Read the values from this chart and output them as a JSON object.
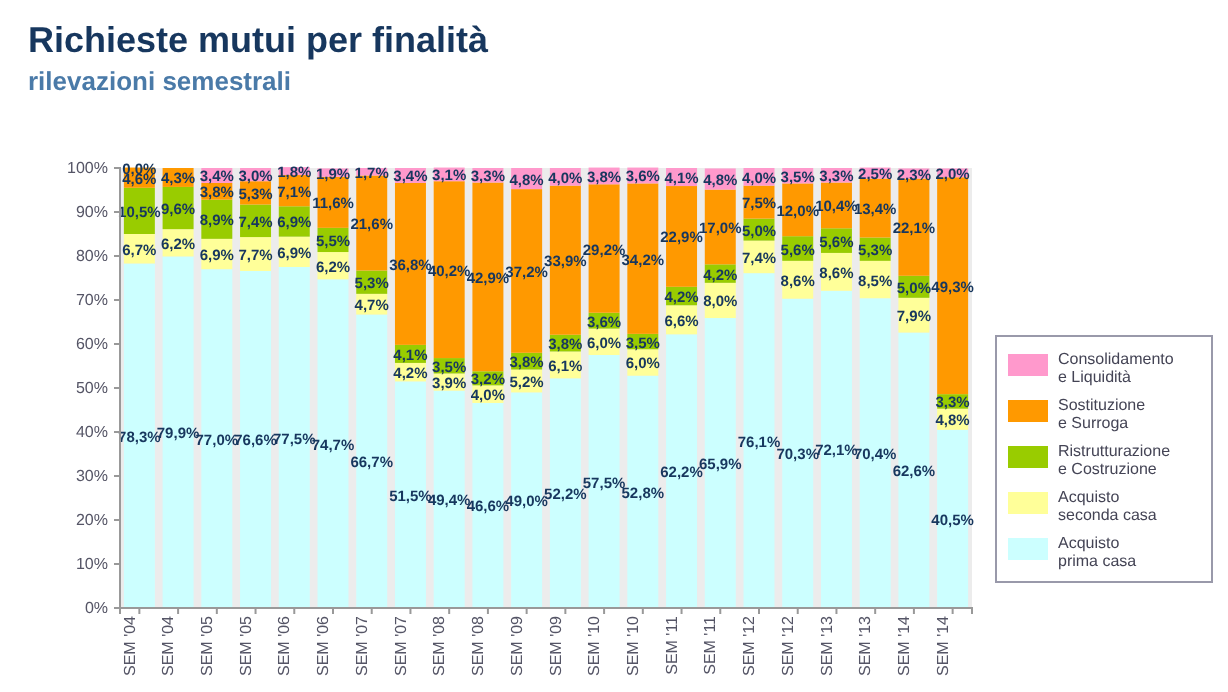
{
  "chart_data": {
    "type": "bar",
    "stacked": true,
    "title": "Richieste mutui per finalità",
    "subtitle": "rilevazioni semestrali",
    "categories": [
      "SEM '04",
      "SEM '04",
      "SEM '05",
      "SEM '05",
      "SEM '06",
      "SEM '06",
      "SEM '07",
      "SEM '07",
      "SEM '08",
      "SEM '08",
      "SEM '09",
      "SEM '09",
      "SEM '10",
      "SEM '10",
      "SEM '11",
      "SEM '11",
      "SEM '12",
      "SEM '12",
      "SEM '13",
      "SEM '13",
      "SEM '14",
      "SEM '14"
    ],
    "series": [
      {
        "name": "Acquisto prima casa",
        "color": "#ccffff",
        "values": [
          78.3,
          79.9,
          77.0,
          76.6,
          77.5,
          74.7,
          66.7,
          51.5,
          49.4,
          46.6,
          49.0,
          52.2,
          57.5,
          52.8,
          62.2,
          65.9,
          76.1,
          70.3,
          72.1,
          70.4,
          62.6,
          40.5
        ],
        "value_labels": [
          "78,3%",
          "79,9%",
          "77,0%",
          "76,6%",
          "77,5%",
          "74,7%",
          "66,7%",
          "51,5%",
          "49,4%",
          "46,6%",
          "49,0%",
          "52,2%",
          "57,5%",
          "52,8%",
          "62,2%",
          "65,9%",
          "76,1%",
          "70,3%",
          "72,1%",
          "70,4%",
          "62,6%",
          "40,5%"
        ]
      },
      {
        "name": "Acquisto seconda casa",
        "color": "#ffff99",
        "values": [
          6.7,
          6.2,
          6.9,
          7.7,
          6.9,
          6.2,
          4.7,
          4.2,
          3.9,
          4.0,
          5.2,
          6.1,
          6.0,
          6.0,
          6.6,
          8.0,
          7.4,
          8.6,
          8.6,
          8.5,
          7.9,
          4.8
        ],
        "value_labels": [
          "6,7%",
          "6,2%",
          "6,9%",
          "7,7%",
          "6,9%",
          "6,2%",
          "4,7%",
          "4,2%",
          "3,9%",
          "4,0%",
          "5,2%",
          "6,1%",
          "6,0%",
          "6,0%",
          "6,6%",
          "8,0%",
          "7,4%",
          "8,6%",
          "8,6%",
          "8,5%",
          "7,9%",
          "4,8%"
        ]
      },
      {
        "name": "Ristrutturazione e Costruzione",
        "color": "#99cc00",
        "values": [
          10.5,
          9.6,
          8.9,
          7.4,
          6.9,
          5.5,
          5.3,
          4.1,
          3.5,
          3.2,
          3.8,
          3.8,
          3.6,
          3.5,
          4.2,
          4.2,
          5.0,
          5.6,
          5.6,
          5.3,
          5.0,
          3.3
        ],
        "value_labels": [
          "10,5%",
          "9,6%",
          "8,9%",
          "7,4%",
          "6,9%",
          "5,5%",
          "5,3%",
          "4,1%",
          "3,5%",
          "3,2%",
          "3,8%",
          "3,8%",
          "3,6%",
          "3,5%",
          "4,2%",
          "4,2%",
          "5,0%",
          "5,6%",
          "5,6%",
          "5,3%",
          "5,0%",
          "3,3%"
        ]
      },
      {
        "name": "Sostituzione e Surroga",
        "color": "#ff9900",
        "values": [
          4.6,
          4.3,
          3.8,
          5.3,
          7.1,
          11.6,
          21.6,
          36.8,
          40.2,
          42.9,
          37.2,
          33.9,
          29.2,
          34.2,
          22.9,
          17.0,
          7.5,
          12.0,
          10.4,
          13.4,
          22.1,
          49.3
        ],
        "value_labels": [
          "4,6%",
          "4,3%",
          "3,8%",
          "5,3%",
          "7,1%",
          "11,6%",
          "21,6%",
          "36,8%",
          "40,2%",
          "42,9%",
          "37,2%",
          "33,9%",
          "29,2%",
          "34,2%",
          "22,9%",
          "17,0%",
          "7,5%",
          "12,0%",
          "10,4%",
          "13,4%",
          "22,1%",
          "49,3%"
        ]
      },
      {
        "name": "Consolidamento e Liquidità",
        "color": "#ff99cc",
        "values": [
          0.0,
          0.0,
          3.4,
          3.0,
          1.8,
          1.9,
          1.7,
          3.4,
          3.1,
          3.3,
          4.8,
          4.0,
          3.8,
          3.6,
          4.1,
          4.8,
          4.0,
          3.5,
          3.3,
          2.5,
          2.3,
          2.0
        ],
        "value_labels": [
          "0,0%",
          null,
          "3,4%",
          "3,0%",
          "1,8%",
          "1,9%",
          "1,7%",
          "3,4%",
          "3,1%",
          "3,3%",
          "4,8%",
          "4,0%",
          "3,8%",
          "3,6%",
          "4,1%",
          "4,8%",
          "4,0%",
          "3,5%",
          "3,3%",
          "2,5%",
          "2,3%",
          "2,0%"
        ]
      }
    ],
    "ylim": [
      0,
      100
    ],
    "yticks": [
      {
        "value": 0,
        "label": "0%"
      },
      {
        "value": 10,
        "label": "10%"
      },
      {
        "value": 20,
        "label": "20%"
      },
      {
        "value": 30,
        "label": "30%"
      },
      {
        "value": 40,
        "label": "40%"
      },
      {
        "value": 50,
        "label": "50%"
      },
      {
        "value": 60,
        "label": "60%"
      },
      {
        "value": 70,
        "label": "70%"
      },
      {
        "value": 80,
        "label": "80%"
      },
      {
        "value": 90,
        "label": "90%"
      },
      {
        "value": 100,
        "label": "100%"
      }
    ],
    "legend": "right"
  }
}
